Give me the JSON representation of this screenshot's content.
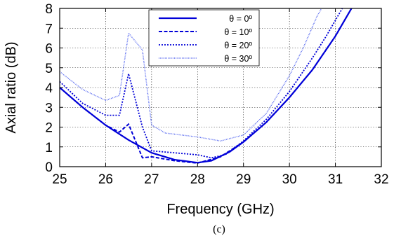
{
  "chart_data": {
    "type": "line",
    "title": "",
    "xlabel": "Frequency (GHz)",
    "ylabel": "Axial ratio (dB)",
    "xlim": [
      25,
      32
    ],
    "ylim": [
      0,
      8
    ],
    "xticks": [
      25,
      26,
      27,
      28,
      29,
      30,
      31,
      32
    ],
    "yticks": [
      0,
      1,
      2,
      3,
      4,
      5,
      6,
      7,
      8
    ],
    "grid": true,
    "legend_position": "top-center",
    "caption": "(c)",
    "series": [
      {
        "name": "θ = 0º",
        "style": "solid",
        "color": "#0000d8",
        "points": [
          [
            25,
            4.0
          ],
          [
            25.5,
            3.0
          ],
          [
            26,
            2.1
          ],
          [
            26.5,
            1.35
          ],
          [
            27,
            0.7
          ],
          [
            27.5,
            0.35
          ],
          [
            28,
            0.2
          ],
          [
            28.3,
            0.3
          ],
          [
            28.7,
            0.75
          ],
          [
            29,
            1.25
          ],
          [
            29.5,
            2.25
          ],
          [
            30,
            3.5
          ],
          [
            30.5,
            4.9
          ],
          [
            31,
            6.6
          ],
          [
            31.15,
            7.2
          ],
          [
            31.35,
            8.0
          ]
        ]
      },
      {
        "name": "θ = 10º",
        "style": "dashed",
        "color": "#0000d8",
        "points": [
          [
            25,
            4.0
          ],
          [
            25.5,
            3.0
          ],
          [
            26,
            2.1
          ],
          [
            26.3,
            1.75
          ],
          [
            26.5,
            2.15
          ],
          [
            26.8,
            0.45
          ],
          [
            27,
            0.5
          ],
          [
            27.5,
            0.3
          ],
          [
            28,
            0.18
          ],
          [
            28.5,
            0.5
          ],
          [
            29,
            1.25
          ],
          [
            29.5,
            2.25
          ],
          [
            30,
            3.5
          ],
          [
            30.5,
            4.9
          ],
          [
            31,
            6.6
          ],
          [
            31.35,
            8.0
          ]
        ]
      },
      {
        "name": "θ = 20º",
        "style": "dotted",
        "color": "#0000d8",
        "points": [
          [
            25,
            4.3
          ],
          [
            25.5,
            3.2
          ],
          [
            26,
            2.6
          ],
          [
            26.3,
            2.6
          ],
          [
            26.5,
            4.7
          ],
          [
            26.8,
            2.0
          ],
          [
            27,
            0.8
          ],
          [
            27.5,
            0.7
          ],
          [
            28,
            0.6
          ],
          [
            28.3,
            0.45
          ],
          [
            28.6,
            0.6
          ],
          [
            29,
            1.3
          ],
          [
            29.5,
            2.4
          ],
          [
            30,
            3.8
          ],
          [
            30.5,
            5.5
          ],
          [
            30.8,
            6.6
          ],
          [
            31.15,
            8.0
          ]
        ]
      },
      {
        "name": "θ = 30º",
        "style": "fine-dotted",
        "color": "#5a6cf0",
        "points": [
          [
            25,
            4.8
          ],
          [
            25.5,
            3.9
          ],
          [
            26,
            3.35
          ],
          [
            26.3,
            3.6
          ],
          [
            26.5,
            6.75
          ],
          [
            26.8,
            5.9
          ],
          [
            27,
            2.1
          ],
          [
            27.3,
            1.7
          ],
          [
            28,
            1.5
          ],
          [
            28.5,
            1.3
          ],
          [
            29,
            1.6
          ],
          [
            29.5,
            2.7
          ],
          [
            30,
            4.6
          ],
          [
            30.3,
            6.0
          ],
          [
            30.6,
            7.6
          ],
          [
            30.7,
            8.0
          ]
        ]
      }
    ]
  }
}
